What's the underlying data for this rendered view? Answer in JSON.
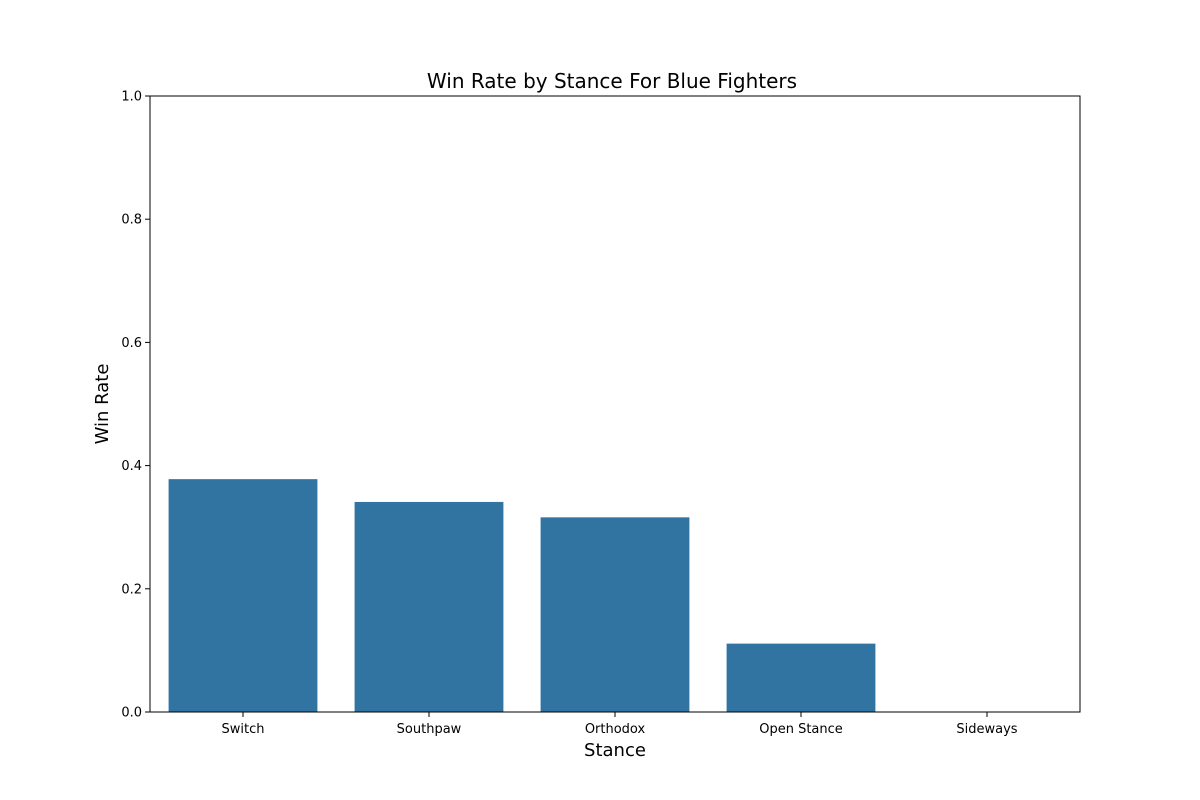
{
  "chart_data": {
    "type": "bar",
    "title": "Win Rate by Stance For Blue Fighters",
    "xlabel": "Stance",
    "ylabel": "Win Rate",
    "categories": [
      "Switch",
      "Southpaw",
      "Orthodox",
      "Open Stance",
      "Sideways"
    ],
    "values": [
      0.378,
      0.341,
      0.316,
      0.111,
      0.0
    ],
    "ylim": [
      0,
      1
    ],
    "yticks": [
      0.0,
      0.2,
      0.4,
      0.6,
      0.8,
      1.0
    ],
    "ytick_labels": [
      "0.0",
      "0.2",
      "0.4",
      "0.6",
      "0.8",
      "1.0"
    ],
    "bar_color": "#3274a1",
    "grid": false,
    "legend": false
  }
}
